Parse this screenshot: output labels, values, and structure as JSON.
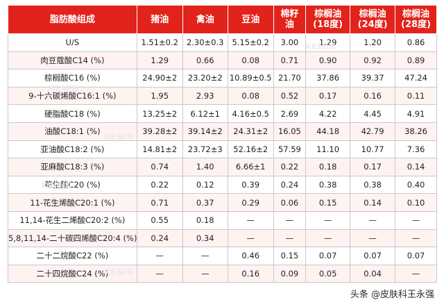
{
  "table": {
    "headers": [
      "脂肪酸组成",
      "猪油",
      "禽油",
      "豆油",
      "棉籽\n油",
      "棕榈油\n(18度)",
      "棕榈油\n(24度)",
      "棕榈油\n(28度)"
    ],
    "rows": [
      [
        "U/S",
        "1.51±0.2",
        "2.30±0.3",
        "5.15±0.2",
        "3.00",
        "1.29",
        "1.20",
        "0.86"
      ],
      [
        "肉豆蔻酸C14 (%)",
        "1.29",
        "0.66",
        "0.08",
        "0.71",
        "0.90",
        "0.92",
        "0.89"
      ],
      [
        "棕榈酸C16 (%)",
        "24.90±2",
        "23.20±2",
        "10.89±0.5",
        "21.70",
        "37.86",
        "39.37",
        "47.24"
      ],
      [
        "9-十六碳烯酸C16:1 (%)",
        "1.95",
        "2.93",
        "0.08",
        "0.52",
        "0.17",
        "0.16",
        "0.11"
      ],
      [
        "硬脂酸C18 (%)",
        "13.25±2",
        "6.12±1",
        "4.16±0.5",
        "2.69",
        "4.22",
        "4.45",
        "4.91"
      ],
      [
        "油酸C18:1 (%)",
        "39.28±2",
        "39.14±2",
        "24.31±2",
        "16.05",
        "44.18",
        "42.79",
        "38.26"
      ],
      [
        "亚油酸C18:2 (%)",
        "14.81±2",
        "23.72±3",
        "52.16±2",
        "57.59",
        "11.10",
        "10.77",
        "7.36"
      ],
      [
        "亚麻酸C18:3 (%)",
        "0.74",
        "1.40",
        "6.66±1",
        "0.22",
        "0.18",
        "0.17",
        "0.14"
      ],
      [
        "花生酸C20 (%)",
        "0.22",
        "0.12",
        "0.39",
        "0.24",
        "0.38",
        "0.38",
        "0.40"
      ],
      [
        "11-花生烯酸C20:1 (%)",
        "0.71",
        "0.37",
        "0.29",
        "0.06",
        "0.15",
        "0.14",
        "0.10"
      ],
      [
        "11,14-花生二烯酸C20:2 (%)",
        "0.55",
        "0.18",
        "—",
        "—",
        "—",
        "—",
        "—"
      ],
      [
        "5,8,11,14-二十碳四烯酸C20:4 (%)",
        "0.24",
        "0.34",
        "—",
        "—",
        "—",
        "—",
        "—"
      ],
      [
        "二十二烷酸C22 (%)",
        "—",
        "—",
        "0.46",
        "0.15",
        "0.07",
        "0.07",
        "0.07"
      ],
      [
        "二十四烷酸C24 (%)",
        "—",
        "—",
        "0.16",
        "0.09",
        "0.05",
        "0.04",
        "—"
      ]
    ]
  },
  "watermark": "KEMIN",
  "source_label": "头条 @皮肤科王永强",
  "colors": {
    "header_bg": "#e2231b",
    "header_text": "#ffffff",
    "stripe": "#fff3f2"
  }
}
